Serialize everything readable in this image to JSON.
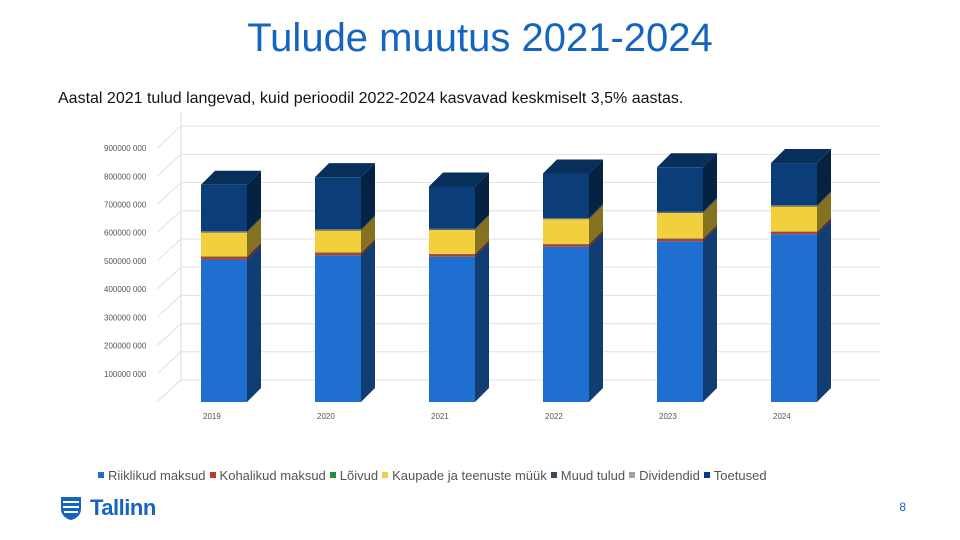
{
  "slide": {
    "title": "Tulude muutus 2021-2024",
    "subtitle": "Aastal 2021 tulud langevad, kuid perioodil 2022-2024 kasvavad keskmiselt 3,5% aastas.",
    "page_number": "8",
    "logo_text": "Tallinn",
    "logo_icon": "tallinn-crest-icon"
  },
  "chart_data": {
    "type": "bar",
    "stacked": true,
    "three_d": true,
    "categories": [
      "2019",
      "2020",
      "2021",
      "2022",
      "2023",
      "2024"
    ],
    "y_tick_labels": [
      "100000 000",
      "200000 000",
      "300000 000",
      "400000 000",
      "500000 000",
      "600000 000",
      "700000 000",
      "800000 000",
      "900000 000"
    ],
    "ylim": [
      0,
      950000000
    ],
    "grid": true,
    "legend_position": "bottom",
    "series": [
      {
        "name": "Riiklikud maksud",
        "color": "#1f6fd0",
        "values": [
          505000000,
          520000000,
          515000000,
          550000000,
          570000000,
          595000000
        ]
      },
      {
        "name": "Kohalikud maksud",
        "color": "#c0392b",
        "values": [
          9000000,
          8000000,
          8000000,
          8000000,
          8000000,
          8000000
        ]
      },
      {
        "name": "Lõivud",
        "color": "#2e8b3a",
        "values": [
          2000000,
          2000000,
          2000000,
          2000000,
          2000000,
          2000000
        ]
      },
      {
        "name": "Kaupade ja teenuste müük",
        "color": "#f2cf3c",
        "values": [
          85000000,
          78000000,
          85000000,
          88000000,
          90000000,
          88000000
        ]
      },
      {
        "name": "Muud tulud",
        "color": "#3b4a5a",
        "values": [
          3000000,
          3000000,
          3000000,
          3000000,
          3000000,
          3000000
        ]
      },
      {
        "name": "Dividendid",
        "color": "#9aa5ae",
        "values": [
          1000000,
          1000000,
          1000000,
          1000000,
          1000000,
          1000000
        ]
      },
      {
        "name": "Toetused",
        "color": "#0b3d78",
        "values": [
          165000000,
          185000000,
          150000000,
          158000000,
          158000000,
          150000000
        ]
      }
    ]
  }
}
